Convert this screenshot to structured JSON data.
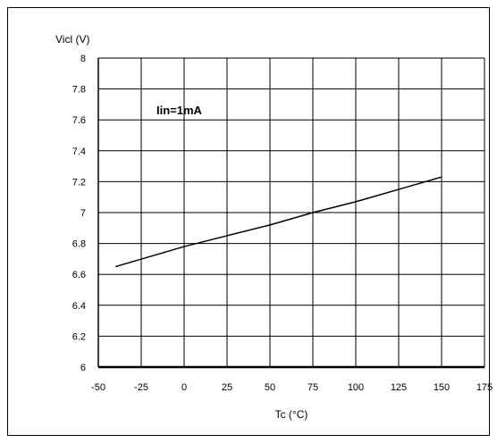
{
  "chart_data": {
    "type": "line",
    "ylabel": "Vicl (V)",
    "xlabel": "Tc (°C)",
    "annotation": "Iin=1mA",
    "xlim": [
      -50,
      175
    ],
    "ylim": [
      6,
      8
    ],
    "x_ticks": [
      -50,
      -25,
      0,
      25,
      50,
      75,
      100,
      125,
      150,
      175
    ],
    "y_ticks": [
      6,
      6.2,
      6.4,
      6.6,
      6.8,
      7,
      7.2,
      7.4,
      7.6,
      7.8,
      8
    ],
    "grid": true,
    "series": [
      {
        "x": [
          -40,
          0,
          25,
          50,
          75,
          100,
          125,
          150
        ],
        "y": [
          6.65,
          6.78,
          6.85,
          6.92,
          7.0,
          7.07,
          7.15,
          7.23
        ]
      }
    ]
  },
  "colors": {
    "line": "#000000",
    "grid": "#000000",
    "axis": "#000000"
  }
}
